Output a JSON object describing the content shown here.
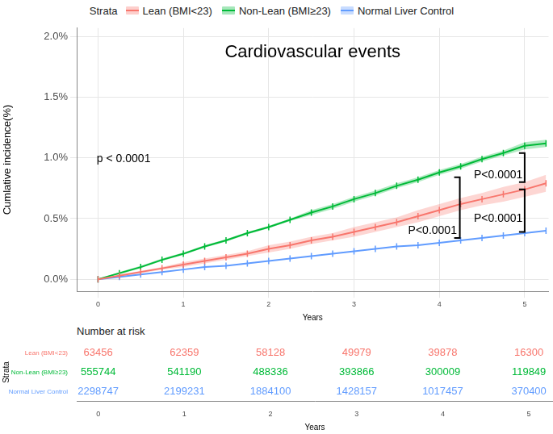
{
  "chart_data": [
    {
      "type": "line",
      "title": "Cardiovascular events",
      "x_label": "Years",
      "y_label": "Cumlative incidence(%)",
      "legend": "top",
      "legend_title": "Strata",
      "grid": true,
      "xlim": [
        -0.25,
        5.28
      ],
      "xticks": [
        0,
        1,
        2,
        3,
        4,
        5
      ],
      "ylim": [
        -0.1,
        2.07
      ],
      "yticks": [
        {
          "value": 0,
          "label": "0.0%"
        },
        {
          "value": 0.5,
          "label": "0.5%"
        },
        {
          "value": 1,
          "label": "1.0%"
        },
        {
          "value": 1.5,
          "label": "1.5%"
        },
        {
          "value": 2,
          "label": "2.0%"
        }
      ],
      "x": [
        0,
        0.25,
        0.5,
        0.75,
        1,
        1.25,
        1.5,
        1.75,
        2,
        2.25,
        2.5,
        2.75,
        3,
        3.25,
        3.5,
        3.75,
        4,
        4.25,
        4.5,
        4.75,
        5,
        5.25
      ],
      "series": [
        {
          "name": "Lean (BMI<23)",
          "color": "#F8766D",
          "marker": "tick",
          "values": [
            0,
            0.03,
            0.06,
            0.09,
            0.12,
            0.15,
            0.18,
            0.21,
            0.25,
            0.28,
            0.32,
            0.35,
            0.39,
            0.43,
            0.47,
            0.52,
            0.57,
            0.62,
            0.66,
            0.7,
            0.74,
            0.79
          ],
          "lower": [
            0,
            0.02,
            0.05,
            0.08,
            0.1,
            0.13,
            0.16,
            0.19,
            0.22,
            0.25,
            0.29,
            0.32,
            0.35,
            0.39,
            0.43,
            0.47,
            0.52,
            0.57,
            0.61,
            0.64,
            0.68,
            0.72
          ],
          "upper": [
            0,
            0.04,
            0.07,
            0.1,
            0.14,
            0.17,
            0.2,
            0.23,
            0.28,
            0.31,
            0.35,
            0.38,
            0.43,
            0.47,
            0.51,
            0.57,
            0.62,
            0.67,
            0.71,
            0.76,
            0.8,
            0.86
          ]
        },
        {
          "name": "Non-Lean (BMI≥23)",
          "color": "#00BA38",
          "marker": "tick",
          "values": [
            0,
            0.05,
            0.1,
            0.16,
            0.21,
            0.27,
            0.32,
            0.38,
            0.43,
            0.49,
            0.55,
            0.6,
            0.66,
            0.71,
            0.77,
            0.82,
            0.88,
            0.93,
            0.99,
            1.04,
            1.1,
            1.12
          ],
          "lower": [
            0,
            0.04,
            0.09,
            0.15,
            0.2,
            0.26,
            0.31,
            0.37,
            0.42,
            0.48,
            0.53,
            0.58,
            0.64,
            0.69,
            0.75,
            0.8,
            0.86,
            0.91,
            0.97,
            1.02,
            1.07,
            1.09
          ],
          "upper": [
            0,
            0.06,
            0.11,
            0.17,
            0.22,
            0.28,
            0.33,
            0.39,
            0.44,
            0.5,
            0.57,
            0.62,
            0.68,
            0.73,
            0.79,
            0.84,
            0.9,
            0.95,
            1.01,
            1.06,
            1.13,
            1.15
          ]
        },
        {
          "name": "Normal Liver Control",
          "color": "#619CFF",
          "marker": "tick",
          "values": [
            0,
            0.02,
            0.04,
            0.06,
            0.08,
            0.1,
            0.11,
            0.13,
            0.15,
            0.17,
            0.19,
            0.21,
            0.23,
            0.25,
            0.27,
            0.28,
            0.3,
            0.32,
            0.34,
            0.36,
            0.38,
            0.4
          ]
        }
      ],
      "annotations": [
        {
          "text": "p < 0.0001",
          "x": 0.3,
          "y": 0.99
        },
        {
          "text": "P<0.0001",
          "x": 4.69,
          "y": 0.86
        },
        {
          "text": "P<0.0001",
          "x": 4.69,
          "y": 0.5
        },
        {
          "text": "P<0.0001",
          "x": 3.92,
          "y": 0.4
        }
      ],
      "brackets": [
        {
          "x": 5.0,
          "y_from": 0.8,
          "y_to": 1.04
        },
        {
          "x": 5.0,
          "y_from": 0.39,
          "y_to": 0.74
        },
        {
          "x": 4.24,
          "y_from": 0.34,
          "y_to": 0.84
        }
      ]
    },
    {
      "type": "table",
      "title": "Number at risk",
      "x_label": "Years",
      "y_label": "Strata",
      "xlim": [
        -0.25,
        5.28
      ],
      "xticks": [
        0,
        1,
        2,
        3,
        4,
        5
      ],
      "x": [
        0,
        1,
        2,
        3,
        4,
        5
      ],
      "series": [
        {
          "name": "Lean (BMI<23)",
          "color": "#F8766D",
          "values": [
            63456,
            62359,
            58128,
            49979,
            39878,
            16300
          ]
        },
        {
          "name": "Non-Lean (BMI≥23)",
          "color": "#00BA38",
          "values": [
            555744,
            541190,
            488336,
            393866,
            300009,
            119849
          ]
        },
        {
          "name": "Normal Liver Control",
          "color": "#619CFF",
          "values": [
            2298747,
            2199231,
            1884100,
            1428157,
            1017457,
            370400
          ]
        }
      ]
    }
  ]
}
